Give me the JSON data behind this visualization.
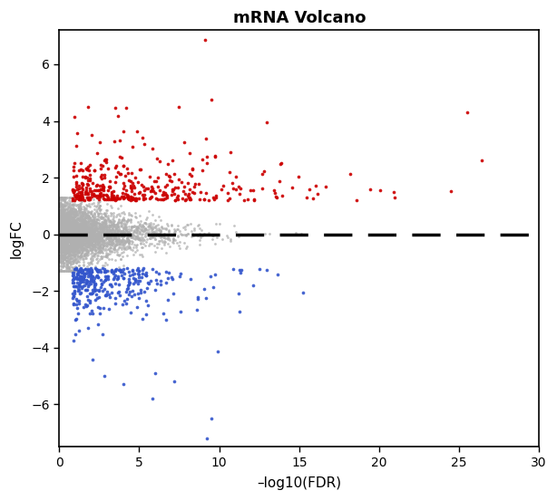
{
  "title": "mRNA Volcano",
  "xlabel": "–log10(FDR)",
  "ylabel": "logFC",
  "xlim": [
    0,
    30
  ],
  "ylim": [
    -7.5,
    7.2
  ],
  "xticks": [
    0,
    5,
    10,
    15,
    20,
    25,
    30
  ],
  "yticks": [
    -6,
    -4,
    -2,
    0,
    2,
    4,
    6
  ],
  "hline_y": 0,
  "gray_color": "#b0b0b0",
  "red_color": "#cc0000",
  "blue_color": "#3355cc",
  "dot_size_gray": 4,
  "dot_size_colored": 7,
  "title_fontsize": 13,
  "label_fontsize": 11,
  "tick_fontsize": 10,
  "background_color": "#ffffff",
  "seed": 7,
  "n_gray": 4000,
  "n_red": 400,
  "n_blue": 350
}
